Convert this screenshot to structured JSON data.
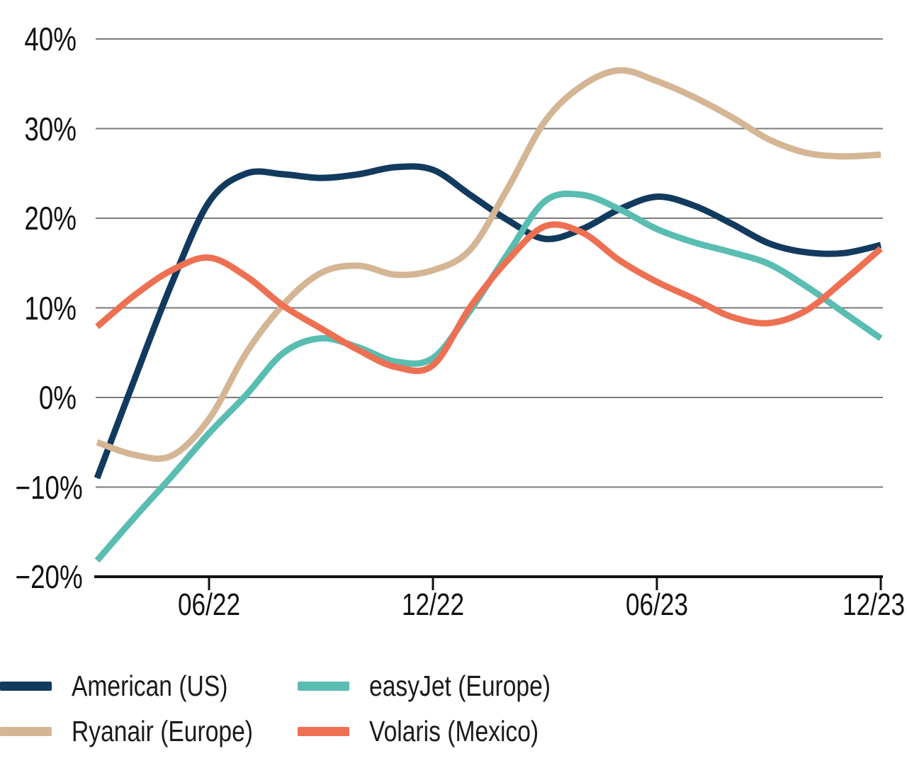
{
  "chart_data": {
    "type": "line",
    "title": "",
    "xlabel": "",
    "ylabel": "",
    "x_unit": "month",
    "ylim": [
      -20,
      40
    ],
    "grid": "horizontal-only",
    "legend_position": "bottom-left",
    "colors": {
      "background": "#ffffff",
      "gridline": "#7b7b7b",
      "axis": "#111111",
      "label_text": "#111111",
      "legend_text": "#1a1a1a"
    },
    "x": [
      "03/22",
      "04/22",
      "05/22",
      "06/22",
      "07/22",
      "08/22",
      "09/22",
      "10/22",
      "11/22",
      "12/22",
      "01/23",
      "02/23",
      "03/23",
      "04/23",
      "05/23",
      "06/23",
      "07/23",
      "08/23",
      "09/23",
      "10/23",
      "11/23",
      "12/23"
    ],
    "x_ticks": [
      {
        "month_index": 3,
        "label": "06/22"
      },
      {
        "month_index": 9,
        "label": "12/22"
      },
      {
        "month_index": 15,
        "label": "06/23"
      },
      {
        "month_index": 21,
        "label": "12/23"
      }
    ],
    "y_ticks": [
      {
        "value": 40,
        "label": "40%"
      },
      {
        "value": 30,
        "label": "30%"
      },
      {
        "value": 20,
        "label": "20%"
      },
      {
        "value": 10,
        "label": "10%"
      },
      {
        "value": 0,
        "label": "0%"
      },
      {
        "value": -10,
        "label": "−10%"
      },
      {
        "value": -20,
        "label": "−20%"
      }
    ],
    "series": [
      {
        "name": "American (US)",
        "color": "#123A5E",
        "values": [
          -9.0,
          2.0,
          12.7,
          21.8,
          25.0,
          24.9,
          24.5,
          24.9,
          25.7,
          25.4,
          22.6,
          19.8,
          17.7,
          18.8,
          21.0,
          22.4,
          21.4,
          19.4,
          17.2,
          16.2,
          16.1,
          17.0
        ]
      },
      {
        "name": "Ryanair (Europe)",
        "color": "#D4B694",
        "values": [
          -5.0,
          -6.4,
          -6.5,
          -2.4,
          5.0,
          10.4,
          13.9,
          14.7,
          13.7,
          14.2,
          16.5,
          23.3,
          30.8,
          34.8,
          36.5,
          35.3,
          33.5,
          31.3,
          28.8,
          27.3,
          26.9,
          27.1
        ]
      },
      {
        "name": "easyJet (Europe)",
        "color": "#59BDB1",
        "values": [
          -18.2,
          -13.4,
          -8.8,
          -4.0,
          0.3,
          5.0,
          6.6,
          5.6,
          4.0,
          4.4,
          9.7,
          16.0,
          21.9,
          22.6,
          21.0,
          18.8,
          17.3,
          16.2,
          14.9,
          12.4,
          9.5,
          6.6
        ]
      },
      {
        "name": "Volaris (Mexico)",
        "color": "#EE7053",
        "values": [
          7.9,
          11.4,
          14.2,
          15.6,
          13.5,
          10.2,
          7.7,
          5.3,
          3.4,
          3.6,
          10.1,
          15.3,
          19.1,
          18.4,
          15.3,
          12.9,
          11.0,
          9.0,
          8.3,
          9.7,
          13.0,
          16.6
        ]
      }
    ]
  }
}
